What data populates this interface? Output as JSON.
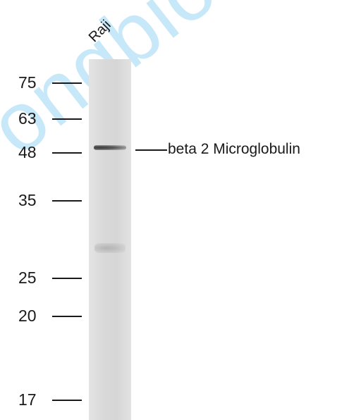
{
  "watermark": "ongbiotech.",
  "lane_label": "Raji",
  "markers": [
    {
      "label": "75"
    },
    {
      "label": "63"
    },
    {
      "label": "48"
    },
    {
      "label": "35"
    },
    {
      "label": "25"
    },
    {
      "label": "20"
    },
    {
      "label": "17"
    }
  ],
  "band_annotation": "beta 2 Microglobulin",
  "colors": {
    "watermark": "#6fc3ef",
    "lane": "#d9d9d9",
    "band": "#3c3c3c"
  }
}
